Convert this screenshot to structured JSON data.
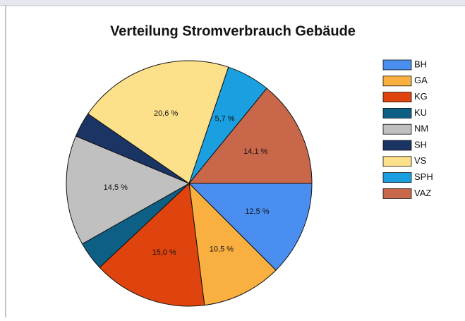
{
  "chart_data": {
    "type": "pie",
    "title": "Verteilung Stromverbrauch Gebäude",
    "categories": [
      "BH",
      "GA",
      "KG",
      "KU",
      "NM",
      "SH",
      "VS",
      "SPH",
      "VAZ"
    ],
    "values": [
      12.5,
      10.5,
      15.0,
      3.8,
      14.5,
      3.3,
      20.6,
      5.7,
      14.1
    ],
    "value_labels": [
      "12,5 %",
      "10,5 %",
      "15,0 %",
      null,
      "14,5 %",
      null,
      "20,6 %",
      "5,7 %",
      "14,1 %"
    ],
    "colors": [
      "#4a8ff0",
      "#f9b040",
      "#e0440e",
      "#0d5f86",
      "#c0c0c0",
      "#1a3463",
      "#fde08a",
      "#1aa0e0",
      "#c8674a"
    ],
    "legend": "right"
  }
}
